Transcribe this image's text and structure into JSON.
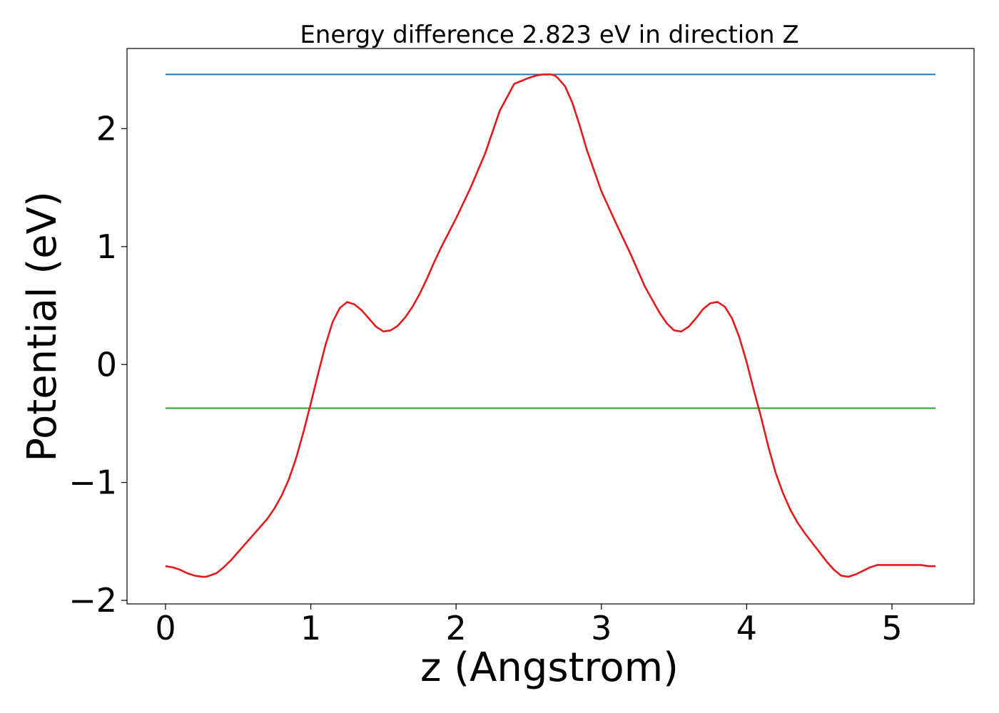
{
  "chart_data": {
    "type": "line",
    "title": "Energy difference 2.823 eV in direction Z",
    "xlabel": "z (Angstrom)",
    "ylabel": "Potential (eV)",
    "xlim": [
      -0.265,
      5.565
    ],
    "ylim": [
      -2.03,
      2.68
    ],
    "xticks": [
      0,
      1,
      2,
      3,
      4,
      5
    ],
    "xtick_labels": [
      "0",
      "1",
      "2",
      "3",
      "4",
      "5"
    ],
    "yticks": [
      -2,
      -1,
      0,
      1,
      2
    ],
    "ytick_labels": [
      "−2",
      "−1",
      "0",
      "1",
      "2"
    ],
    "grid": false,
    "colors": {
      "potential": "#e31a1c",
      "max_line": "#1f77b4",
      "mean_line": "#2ca02c"
    },
    "series": [
      {
        "key": "potential",
        "x": [
          0.0,
          0.05,
          0.1,
          0.15,
          0.2,
          0.25,
          0.28,
          0.35,
          0.4,
          0.45,
          0.5,
          0.55,
          0.6,
          0.65,
          0.7,
          0.75,
          0.8,
          0.85,
          0.9,
          0.95,
          1.0,
          1.05,
          1.1,
          1.15,
          1.2,
          1.25,
          1.3,
          1.35,
          1.4,
          1.45,
          1.5,
          1.55,
          1.6,
          1.65,
          1.7,
          1.75,
          1.8,
          1.85,
          1.9,
          2.0,
          2.1,
          2.2,
          2.3,
          2.4,
          2.5,
          2.55,
          2.6,
          2.65,
          2.68,
          2.7,
          2.75,
          2.8,
          2.85,
          2.9,
          3.0,
          3.1,
          3.2,
          3.3,
          3.4,
          3.45,
          3.5,
          3.55,
          3.6,
          3.65,
          3.7,
          3.75,
          3.8,
          3.85,
          3.9,
          3.95,
          4.0,
          4.05,
          4.1,
          4.15,
          4.2,
          4.25,
          4.3,
          4.35,
          4.4,
          4.45,
          4.5,
          4.55,
          4.6,
          4.65,
          4.7,
          4.75,
          4.8,
          4.85,
          4.9,
          4.95,
          5.0,
          5.05,
          5.1,
          5.15,
          5.2,
          5.25,
          5.3
        ],
        "y": [
          -1.71,
          -1.72,
          -1.74,
          -1.77,
          -1.79,
          -1.8,
          -1.8,
          -1.77,
          -1.72,
          -1.66,
          -1.59,
          -1.52,
          -1.45,
          -1.38,
          -1.31,
          -1.22,
          -1.11,
          -0.97,
          -0.79,
          -0.57,
          -0.33,
          -0.08,
          0.16,
          0.36,
          0.48,
          0.53,
          0.51,
          0.46,
          0.39,
          0.32,
          0.28,
          0.29,
          0.33,
          0.4,
          0.49,
          0.6,
          0.73,
          0.87,
          1.0,
          1.24,
          1.5,
          1.79,
          2.15,
          2.38,
          2.43,
          2.45,
          2.46,
          2.46,
          2.45,
          2.43,
          2.36,
          2.22,
          2.03,
          1.82,
          1.47,
          1.2,
          0.94,
          0.66,
          0.44,
          0.35,
          0.29,
          0.28,
          0.32,
          0.39,
          0.47,
          0.52,
          0.53,
          0.49,
          0.39,
          0.23,
          0.02,
          -0.22,
          -0.45,
          -0.7,
          -0.92,
          -1.09,
          -1.23,
          -1.34,
          -1.43,
          -1.51,
          -1.59,
          -1.67,
          -1.74,
          -1.79,
          -1.8,
          -1.78,
          -1.75,
          -1.72,
          -1.7,
          -1.7,
          -1.7,
          -1.7,
          -1.7,
          -1.7,
          -1.7,
          -1.71,
          -1.71
        ]
      },
      {
        "key": "max_line",
        "x": [
          0.0,
          5.3
        ],
        "y": [
          2.46,
          2.46
        ]
      },
      {
        "key": "mean_line",
        "x": [
          0.0,
          5.3
        ],
        "y": [
          -0.37,
          -0.37
        ]
      }
    ]
  }
}
